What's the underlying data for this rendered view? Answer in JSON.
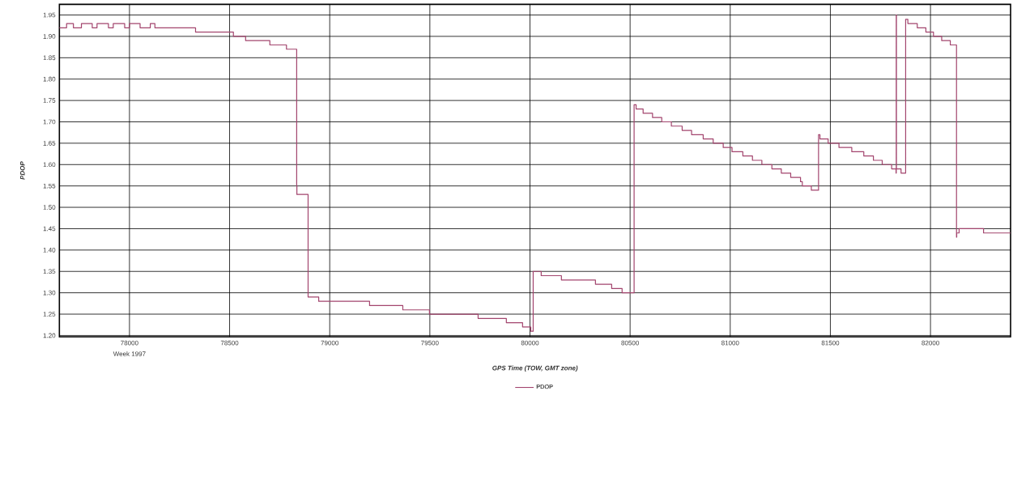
{
  "chart_data": {
    "type": "step",
    "xlabel": "GPS Time (TOW, GMT zone)",
    "ylabel": "PDOP",
    "annotations": [
      "Week 1997"
    ],
    "xlim": [
      77650,
      82400
    ],
    "ylim": [
      1.197,
      1.975
    ],
    "xticks": [
      78000,
      78500,
      79000,
      79500,
      80000,
      80500,
      81000,
      81500,
      82000
    ],
    "yticks": [
      {
        "value": 1.2,
        "label": "1.20"
      },
      {
        "value": 1.25,
        "label": "1.25"
      },
      {
        "value": 1.3,
        "label": "1.30"
      },
      {
        "value": 1.35,
        "label": "1.35"
      },
      {
        "value": 1.4,
        "label": "1.40"
      },
      {
        "value": 1.45,
        "label": "1.45"
      },
      {
        "value": 1.5,
        "label": "1.50"
      },
      {
        "value": 1.55,
        "label": "1.55"
      },
      {
        "value": 1.6,
        "label": "1.60"
      },
      {
        "value": 1.65,
        "label": "1.65"
      },
      {
        "value": 1.7,
        "label": "1.70"
      },
      {
        "value": 1.75,
        "label": "1.75"
      },
      {
        "value": 1.8,
        "label": "1.80"
      },
      {
        "value": 1.85,
        "label": "1.85"
      },
      {
        "value": 1.9,
        "label": "1.90"
      },
      {
        "value": 1.95,
        "label": "1.95"
      }
    ],
    "grid": true,
    "legend": "bottom",
    "marker": "none",
    "line_style": "solid",
    "series": [
      {
        "name": "PDOP",
        "color": "#a3456e",
        "x": [
          77650,
          77686,
          77720,
          77760,
          77814,
          77838,
          77895,
          77919,
          77976,
          78000,
          78053,
          78104,
          78127,
          78330,
          78519,
          78580,
          78701,
          78784,
          78835,
          78836,
          78892,
          78945,
          79199,
          79365,
          79498,
          79741,
          79882,
          79963,
          80004,
          80016,
          80056,
          80157,
          80327,
          80408,
          80460,
          80520,
          80530,
          80565,
          80612,
          80658,
          80706,
          80760,
          80807,
          80865,
          80915,
          80965,
          81009,
          81063,
          81111,
          81158,
          81208,
          81255,
          81302,
          81351,
          81360,
          81405,
          81441,
          81448,
          81489,
          81543,
          81607,
          81667,
          81715,
          81759,
          81806,
          81828,
          81829,
          81830,
          81853,
          81876,
          81887,
          81934,
          81977,
          82015,
          82056,
          82099,
          82130,
          82131,
          82143,
          82265,
          82400
        ],
        "values": [
          1.92,
          1.93,
          1.92,
          1.93,
          1.92,
          1.93,
          1.92,
          1.93,
          1.92,
          1.93,
          1.92,
          1.93,
          1.92,
          1.91,
          1.9,
          1.89,
          1.88,
          1.87,
          1.55,
          1.53,
          1.29,
          1.28,
          1.27,
          1.26,
          1.25,
          1.24,
          1.23,
          1.22,
          1.21,
          1.35,
          1.34,
          1.33,
          1.32,
          1.31,
          1.3,
          1.74,
          1.73,
          1.72,
          1.71,
          1.7,
          1.69,
          1.68,
          1.67,
          1.66,
          1.65,
          1.64,
          1.63,
          1.62,
          1.61,
          1.6,
          1.59,
          1.58,
          1.57,
          1.56,
          1.55,
          1.54,
          1.67,
          1.66,
          1.65,
          1.64,
          1.63,
          1.62,
          1.61,
          1.6,
          1.59,
          1.58,
          1.95,
          1.59,
          1.58,
          1.94,
          1.93,
          1.92,
          1.91,
          1.9,
          1.89,
          1.88,
          1.43,
          1.44,
          1.45,
          1.44,
          1.44
        ]
      }
    ]
  }
}
